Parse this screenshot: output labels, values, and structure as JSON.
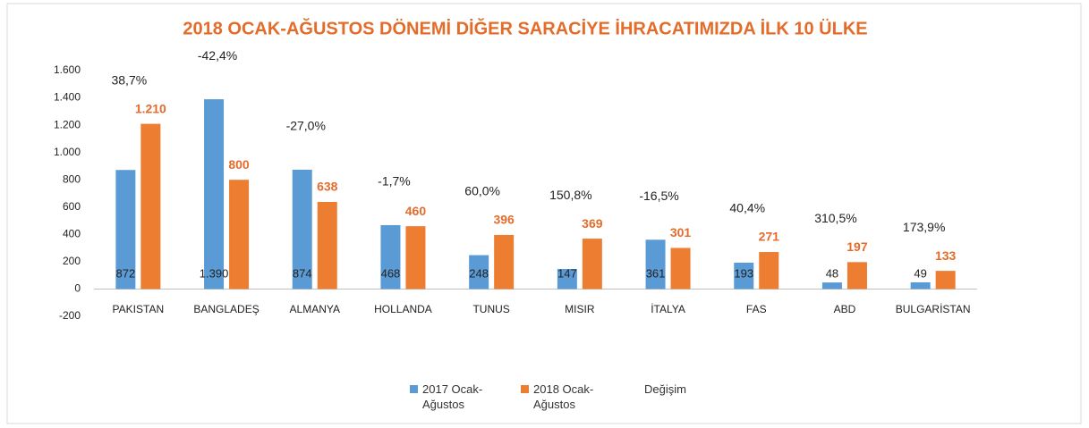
{
  "chart_data": {
    "type": "bar",
    "title": "2018 OCAK-AĞUSTOS DÖNEMİ DİĞER SARACİYE İHRACATIMIZDA İLK  10 ÜLKE",
    "categories": [
      "PAKISTAN",
      "BANGLADEŞ",
      "ALMANYA",
      "HOLLANDA",
      "TUNUS",
      "MISIR",
      "İTALYA",
      "FAS",
      "ABD",
      "BULGARİSTAN"
    ],
    "series": [
      {
        "name": "2017 Ocak-Ağustos",
        "color": "#5b9bd5",
        "values": [
          872,
          1390,
          874,
          468,
          248,
          147,
          361,
          193,
          48,
          49
        ],
        "value_labels": [
          "872",
          "1.390",
          "874",
          "468",
          "248",
          "147",
          "361",
          "193",
          "48",
          "49"
        ]
      },
      {
        "name": "2018 Ocak-Ağustos",
        "color": "#ed7d31",
        "values": [
          1210,
          800,
          638,
          460,
          396,
          369,
          301,
          271,
          197,
          133
        ],
        "value_labels": [
          "1.210",
          "800",
          "638",
          "460",
          "396",
          "369",
          "301",
          "271",
          "197",
          "133"
        ]
      },
      {
        "name": "Değişim",
        "values": [
          38.7,
          -42.4,
          -27.0,
          -1.7,
          60.0,
          150.8,
          -16.5,
          40.4,
          310.5,
          173.9
        ],
        "value_labels": [
          "38,7%",
          "-42,4%",
          "-27,0%",
          "-1,7%",
          "60,0%",
          "150,8%",
          "-16,5%",
          "40,4%",
          "310,5%",
          "173,9%"
        ]
      }
    ],
    "ylim": [
      -200,
      1600
    ],
    "yticks": [
      -200,
      0,
      200,
      400,
      600,
      800,
      {
        "value": 1000,
        "label": "1.000"
      },
      {
        "value": 1200,
        "label": "1.200"
      },
      {
        "value": 1400,
        "label": "1.400"
      },
      {
        "value": 1600,
        "label": "1.600"
      }
    ]
  }
}
